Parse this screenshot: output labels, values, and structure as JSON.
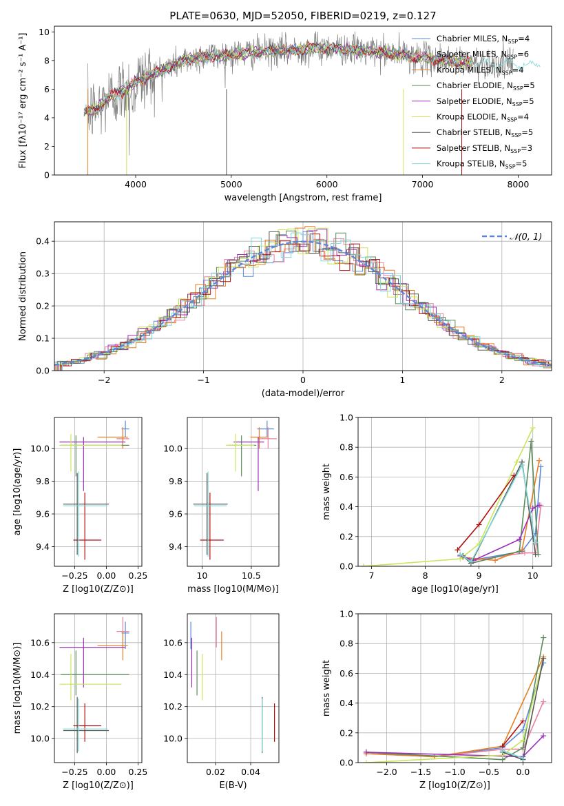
{
  "figure_title": "PLATE=0630, MJD=52050, FIBERID=0219, z=0.127",
  "colors": {
    "Chabrier MILES": "#5b87d6",
    "Salpeter MILES": "#e8809e",
    "Kroupa MILES": "#e67e22",
    "Chabrier ELODIE": "#5a8c5a",
    "Salpeter ELODIE": "#9b30b8",
    "Kroupa ELODIE": "#c8e65a",
    "Chabrier STELIB": "#555555",
    "Salpeter STELIB": "#b01010",
    "Kroupa STELIB": "#7fd8d8"
  },
  "chart_data": [
    {
      "id": "spectrum",
      "type": "line",
      "title": "PLATE=0630, MJD=52050, FIBERID=0219, z=0.127",
      "xlabel": "wavelength [Angstrom, rest frame]",
      "ylabel": "Flux [fλ10⁻¹⁷ erg cm⁻² s⁻¹ A⁻¹]",
      "xlim": [
        3150,
        8350
      ],
      "ylim": [
        0,
        10.4
      ],
      "xticks": [
        4000,
        5000,
        6000,
        7000,
        8000
      ],
      "yticks": [
        0,
        2,
        4,
        6,
        8,
        10
      ],
      "grid": false,
      "legend_position": "top-right",
      "continuum": [
        [
          3450,
          4.4
        ],
        [
          3600,
          4.6
        ],
        [
          3700,
          5.3
        ],
        [
          3800,
          5.7
        ],
        [
          3900,
          6.0
        ],
        [
          4000,
          6.5
        ],
        [
          4150,
          7.0
        ],
        [
          4300,
          7.4
        ],
        [
          4500,
          8.0
        ],
        [
          4700,
          8.3
        ],
        [
          5000,
          8.4
        ],
        [
          5300,
          8.6
        ],
        [
          5600,
          8.7
        ],
        [
          5900,
          8.9
        ],
        [
          6200,
          8.8
        ],
        [
          6500,
          8.6
        ],
        [
          6800,
          8.4
        ],
        [
          7100,
          8.1
        ],
        [
          7400,
          7.9
        ],
        [
          7700,
          7.8
        ],
        [
          8100,
          7.7
        ]
      ],
      "legend": [
        {
          "label": "Chabrier MILES, N",
          "sub": "SSP",
          "suffix": "=4"
        },
        {
          "label": "Salpeter MILES, N",
          "sub": "SSP",
          "suffix": "=6"
        },
        {
          "label": "Kroupa MILES, N",
          "sub": "SSP",
          "suffix": "=4"
        },
        {
          "label": "Chabrier ELODIE, N",
          "sub": "SSP",
          "suffix": "=5"
        },
        {
          "label": "Salpeter ELODIE, N",
          "sub": "SSP",
          "suffix": "=5"
        },
        {
          "label": "Kroupa ELODIE, N",
          "sub": "SSP",
          "suffix": "=4"
        },
        {
          "label": "Chabrier STELIB, N",
          "sub": "SSP",
          "suffix": "=5"
        },
        {
          "label": "Salpeter STELIB, N",
          "sub": "SSP",
          "suffix": "=3"
        },
        {
          "label": "Kroupa STELIB, N",
          "sub": "SSP",
          "suffix": "=5"
        }
      ]
    },
    {
      "id": "residuals",
      "type": "histogram",
      "xlabel": "(data-model)/error",
      "ylabel": "Normed distribution",
      "xlim": [
        -2.5,
        2.5
      ],
      "ylim": [
        0,
        0.46
      ],
      "xticks": [
        -2,
        -1,
        0,
        1,
        2
      ],
      "yticks": [
        0.0,
        0.1,
        0.2,
        0.3,
        0.4
      ],
      "grid": true,
      "legend": {
        "label": "𝒩(0, 1)",
        "position": "top-right"
      },
      "bin_width": 0.1
    },
    {
      "id": "age-vs-Z",
      "type": "errorbar",
      "xlabel": "Z [log10(Z/Z⊙)]",
      "ylabel": "age  [log10(age/yr)]",
      "xlim": [
        -0.41,
        0.28
      ],
      "ylim": [
        9.28,
        10.19
      ],
      "xticks": [
        -0.25,
        0.0,
        0.25
      ],
      "xticklabels": [
        "−0.25",
        "0.00",
        "0.25"
      ],
      "yticks": [
        9.4,
        9.6,
        9.8,
        10.0
      ],
      "grid": true
    },
    {
      "id": "age-vs-mass",
      "type": "errorbar",
      "xlabel": "mass [log10(M/M⊙)]",
      "xlim": [
        9.85,
        10.78
      ],
      "ylim": [
        9.28,
        10.19
      ],
      "xticks": [
        10.0,
        10.5
      ],
      "yticks": [
        9.4,
        9.6,
        9.8,
        10.0
      ],
      "grid": true
    },
    {
      "id": "weight-vs-age",
      "type": "line",
      "xlabel": "age  [log10(age/yr)]",
      "ylabel": "mass weight",
      "xlim": [
        6.75,
        10.35
      ],
      "ylim": [
        0,
        1.0
      ],
      "xticks": [
        7,
        8,
        9,
        10
      ],
      "yticks": [
        0.0,
        0.2,
        0.4,
        0.6,
        0.8,
        1.0
      ],
      "grid": true
    },
    {
      "id": "mass-vs-Z",
      "type": "errorbar",
      "xlabel": "Z [log10(Z/Z⊙)]",
      "ylabel": "mass [log10(M/M⊙)]",
      "xlim": [
        -0.41,
        0.28
      ],
      "ylim": [
        9.85,
        10.78
      ],
      "xticks": [
        -0.25,
        0.0,
        0.25
      ],
      "xticklabels": [
        "−0.25",
        "0.00",
        "0.25"
      ],
      "yticks": [
        10.0,
        10.2,
        10.4,
        10.6
      ],
      "grid": true
    },
    {
      "id": "mass-vs-EBV",
      "type": "errorbar",
      "xlabel": "E(B-V)",
      "xlim": [
        0.004,
        0.056
      ],
      "ylim": [
        9.85,
        10.78
      ],
      "xticks": [
        0.02,
        0.04
      ],
      "yticks": [
        10.0,
        10.2,
        10.4,
        10.6
      ],
      "grid": true
    },
    {
      "id": "weight-vs-Z",
      "type": "line",
      "xlabel": "Z [log10(Z/Z⊙)]",
      "ylabel": "mass weight",
      "xlim": [
        -2.42,
        0.42
      ],
      "ylim": [
        0,
        1.0
      ],
      "xticks": [
        -2.0,
        -1.5,
        -1.0,
        -0.5,
        0.0
      ],
      "xticklabels": [
        "−2.0",
        "−1.5",
        "−1.0",
        "−0.5",
        "0.0"
      ],
      "yticks": [
        0.0,
        0.2,
        0.4,
        0.6,
        0.8,
        1.0
      ],
      "grid": true
    }
  ],
  "models": [
    {
      "name": "Chabrier MILES",
      "Z": 0.15,
      "Zlo": 0.12,
      "Zhi": 0.18,
      "age": 10.12,
      "agelo": 10.07,
      "agehi": 10.17,
      "mass": 10.66,
      "masslo": 10.56,
      "masshi": 10.73,
      "ebv": 0.006,
      "ages": [
        8.65,
        8.85,
        9.8,
        10.05,
        10.15
      ],
      "w": [
        0.07,
        0.04,
        0.1,
        0.22,
        0.67
      ],
      "Zs": [
        -2.3,
        -1.3,
        -0.3,
        0.0,
        0.3
      ]
    },
    {
      "name": "Salpeter MILES",
      "Z": 0.13,
      "Zlo": 0.08,
      "Zhi": 0.18,
      "age": 10.06,
      "agelo": 10.0,
      "agehi": 10.13,
      "mass": 10.67,
      "masslo": 10.57,
      "masshi": 10.76,
      "ebv": 0.0205,
      "ages": [
        8.7,
        8.9,
        9.85,
        10.05,
        10.15
      ],
      "w": [
        0.06,
        0.04,
        0.09,
        0.09,
        0.41
      ],
      "Zs": [
        -2.3,
        -1.3,
        -0.3,
        0.0,
        0.3
      ]
    },
    {
      "name": "Kroupa MILES",
      "Z": 0.13,
      "Zlo": -0.07,
      "Zhi": 0.17,
      "age": 10.07,
      "agelo": 10.0,
      "agehi": 10.13,
      "mass": 10.58,
      "masslo": 10.49,
      "masshi": 10.67,
      "ebv": 0.0235,
      "ages": [
        8.7,
        9.3,
        9.8,
        10.12
      ],
      "w": [
        0.06,
        0.04,
        0.11,
        0.71
      ],
      "Zs": [
        -2.3,
        -1.3,
        -0.3,
        0.3
      ]
    },
    {
      "name": "Chabrier ELODIE",
      "Z": -0.24,
      "Zlo": -0.36,
      "Zhi": 0.18,
      "age": 10.02,
      "agelo": 9.83,
      "agehi": 10.08,
      "mass": 10.4,
      "masslo": 10.27,
      "masshi": 10.55,
      "ebv": 0.0095,
      "ages": [
        8.7,
        8.85,
        9.75,
        9.97,
        10.1
      ],
      "w": [
        0.07,
        0.02,
        0.1,
        0.84,
        0.08
      ],
      "Zs": [
        -2.3,
        -0.3,
        0.0,
        0.3
      ]
    },
    {
      "name": "Salpeter ELODIE",
      "Z": -0.18,
      "Zlo": -0.37,
      "Zhi": 0.15,
      "age": 10.04,
      "agelo": 9.74,
      "agehi": 10.07,
      "mass": 10.57,
      "masslo": 10.32,
      "masshi": 10.63,
      "ebv": 0.0065,
      "ages": [
        8.65,
        8.9,
        9.75,
        10.0,
        10.12
      ],
      "w": [
        0.07,
        0.04,
        0.18,
        0.39,
        0.41
      ],
      "Zs": [
        -2.3,
        0.0,
        0.3
      ]
    },
    {
      "name": "Kroupa ELODIE",
      "Z": -0.28,
      "Zlo": -0.37,
      "Zhi": 0.12,
      "age": 10.02,
      "agelo": 9.86,
      "agehi": 10.09,
      "mass": 10.34,
      "masslo": 10.24,
      "masshi": 10.53,
      "ebv": 0.0125,
      "ages": [
        6.85,
        8.65,
        9.0,
        9.7,
        10.0
      ],
      "w": [
        0.0,
        0.05,
        0.15,
        0.7,
        0.93
      ],
      "Zs": [
        -2.3,
        -0.3,
        0.0,
        0.3
      ]
    },
    {
      "name": "Chabrier STELIB",
      "Z": -0.23,
      "Zlo": -0.34,
      "Zhi": 0.02,
      "age": 9.66,
      "agelo": 9.35,
      "agehi": 9.85,
      "mass": 10.05,
      "masslo": 9.91,
      "masshi": 10.26,
      "ebv": 0.0465,
      "ages": [
        8.7,
        8.85,
        9.8,
        10.05
      ],
      "w": [
        0.07,
        0.02,
        0.7,
        0.08
      ],
      "Zs": [
        -0.3,
        0.0,
        0.3
      ]
    },
    {
      "name": "Salpeter STELIB",
      "Z": -0.17,
      "Zlo": -0.26,
      "Zhi": -0.04,
      "age": 9.44,
      "agelo": 9.32,
      "agehi": 9.73,
      "mass": 10.08,
      "masslo": 9.98,
      "masshi": 10.22,
      "ebv": 0.0535,
      "ages": [
        8.6,
        9.0,
        9.65
      ],
      "w": [
        0.11,
        0.28,
        0.61
      ],
      "Zs": [
        -0.3,
        0.0
      ]
    },
    {
      "name": "Kroupa STELIB",
      "Z": -0.22,
      "Zlo": -0.34,
      "Zhi": 0.01,
      "age": 9.65,
      "agelo": 9.34,
      "agehi": 9.86,
      "mass": 10.06,
      "masslo": 9.92,
      "masshi": 10.25,
      "ebv": 0.0465,
      "ages": [
        8.65,
        8.85,
        9.8,
        10.05
      ],
      "w": [
        0.08,
        0.03,
        0.68,
        0.16
      ],
      "Zs": [
        -0.3,
        0.0
      ]
    }
  ]
}
